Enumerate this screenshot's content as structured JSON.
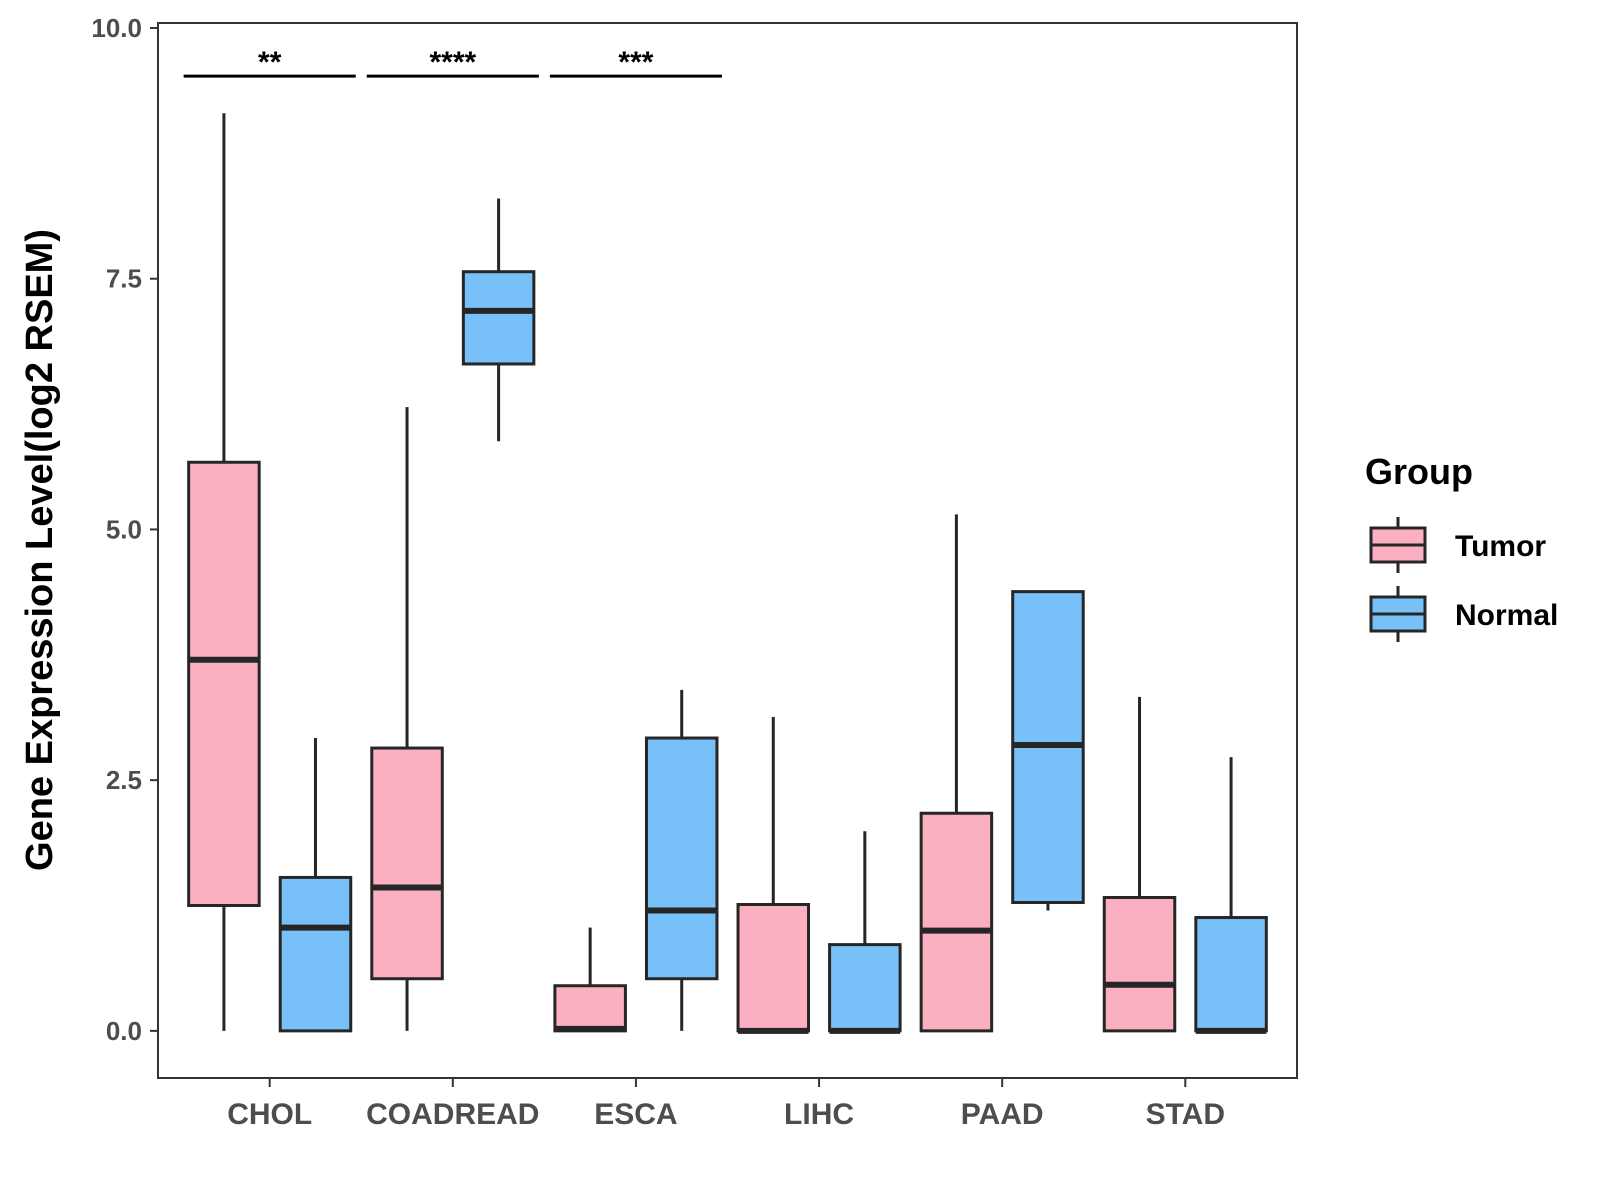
{
  "chart_data": {
    "type": "boxplot",
    "title": "",
    "xlabel": "",
    "ylabel": "Gene Expression Level(log2 RSEM)",
    "ylim": [
      -0.47,
      10.05
    ],
    "yticks": [
      0.0,
      2.5,
      5.0,
      7.5,
      10.0
    ],
    "ytick_labels": [
      "0.0",
      "2.5",
      "5.0",
      "7.5",
      "10.0"
    ],
    "categories": [
      "CHOL",
      "COADREAD",
      "ESCA",
      "LIHC",
      "PAAD",
      "STAD"
    ],
    "legend": {
      "title": "Group",
      "placement": "right",
      "entries": [
        {
          "name": "Tumor",
          "color": "#fbb0c1"
        },
        {
          "name": "Normal",
          "color": "#77c1f8"
        }
      ]
    },
    "series": [
      {
        "name": "Tumor",
        "color": "#fbb0c1",
        "boxes": [
          {
            "category": "CHOL",
            "whisker_low": 0.0,
            "q1": 1.25,
            "median": 3.7,
            "q3": 5.67,
            "whisker_high": 9.15
          },
          {
            "category": "COADREAD",
            "whisker_low": 0.0,
            "q1": 0.52,
            "median": 1.43,
            "q3": 2.82,
            "whisker_high": 6.22
          },
          {
            "category": "ESCA",
            "whisker_low": 0.0,
            "q1": 0.0,
            "median": 0.02,
            "q3": 0.45,
            "whisker_high": 1.03
          },
          {
            "category": "LIHC",
            "whisker_low": 0.0,
            "q1": 0.0,
            "median": 0.0,
            "q3": 1.26,
            "whisker_high": 3.13
          },
          {
            "category": "PAAD",
            "whisker_low": 0.0,
            "q1": 0.0,
            "median": 1.0,
            "q3": 2.17,
            "whisker_high": 5.15
          },
          {
            "category": "STAD",
            "whisker_low": 0.0,
            "q1": 0.0,
            "median": 0.46,
            "q3": 1.33,
            "whisker_high": 3.33
          }
        ]
      },
      {
        "name": "Normal",
        "color": "#77c1f8",
        "boxes": [
          {
            "category": "CHOL",
            "whisker_low": 0.0,
            "q1": 0.0,
            "median": 1.03,
            "q3": 1.53,
            "whisker_high": 2.92
          },
          {
            "category": "COADREAD",
            "whisker_low": 5.88,
            "q1": 6.65,
            "median": 7.18,
            "q3": 7.57,
            "whisker_high": 8.3
          },
          {
            "category": "ESCA",
            "whisker_low": 0.0,
            "q1": 0.52,
            "median": 1.2,
            "q3": 2.92,
            "whisker_high": 3.4
          },
          {
            "category": "LIHC",
            "whisker_low": 0.0,
            "q1": 0.0,
            "median": 0.0,
            "q3": 0.86,
            "whisker_high": 1.99
          },
          {
            "category": "PAAD",
            "whisker_low": 1.2,
            "q1": 1.28,
            "median": 2.85,
            "q3": 4.38,
            "whisker_high": 4.38
          },
          {
            "category": "STAD",
            "whisker_low": 0.0,
            "q1": 0.0,
            "median": 0.0,
            "q3": 1.13,
            "whisker_high": 2.73
          }
        ]
      }
    ],
    "significance": [
      {
        "category": "CHOL",
        "label": "**",
        "y": 9.52
      },
      {
        "category": "COADREAD",
        "label": "****",
        "y": 9.52
      },
      {
        "category": "ESCA",
        "label": "***",
        "y": 9.52
      }
    ],
    "grid": false
  }
}
